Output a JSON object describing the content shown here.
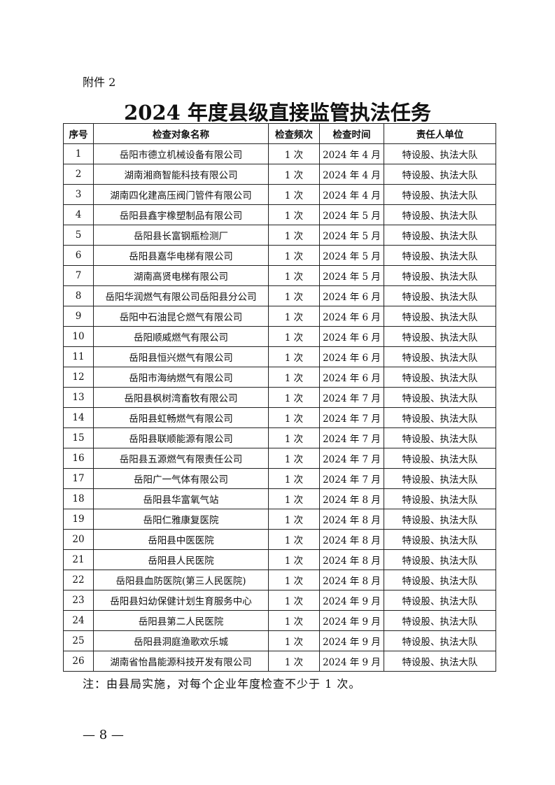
{
  "attachment_label": "附件 2",
  "title": "2024 年度县级直接监管执法任务",
  "table": {
    "headers": [
      "序号",
      "检查对象名称",
      "检查频次",
      "检查时间",
      "责任人单位"
    ],
    "rows": [
      [
        "1",
        "岳阳市德立机械设备有限公司",
        "1 次",
        "2024 年 4 月",
        "特设股、执法大队"
      ],
      [
        "2",
        "湖南湘商智能科技有限公司",
        "1 次",
        "2024 年 4 月",
        "特设股、执法大队"
      ],
      [
        "3",
        "湖南四化建高压阀门管件有限公司",
        "1 次",
        "2024 年 4 月",
        "特设股、执法大队"
      ],
      [
        "4",
        "岳阳县鑫宇橡塑制品有限公司",
        "1 次",
        "2024 年 5 月",
        "特设股、执法大队"
      ],
      [
        "5",
        "岳阳县长富钢瓶检测厂",
        "1 次",
        "2024 年 5 月",
        "特设股、执法大队"
      ],
      [
        "6",
        "岳阳县嘉华电梯有限公司",
        "1 次",
        "2024 年 5 月",
        "特设股、执法大队"
      ],
      [
        "7",
        "湖南高贤电梯有限公司",
        "1 次",
        "2024 年 5 月",
        "特设股、执法大队"
      ],
      [
        "8",
        "岳阳华润燃气有限公司岳阳县分公司",
        "1 次",
        "2024 年 6 月",
        "特设股、执法大队"
      ],
      [
        "9",
        "岳阳中石油昆仑燃气有限公司",
        "1 次",
        "2024 年 6 月",
        "特设股、执法大队"
      ],
      [
        "10",
        "岳阳顺威燃气有限公司",
        "1 次",
        "2024 年 6 月",
        "特设股、执法大队"
      ],
      [
        "11",
        "岳阳县恒兴燃气有限公司",
        "1 次",
        "2024 年 6 月",
        "特设股、执法大队"
      ],
      [
        "12",
        "岳阳市海纳燃气有限公司",
        "1 次",
        "2024 年 6 月",
        "特设股、执法大队"
      ],
      [
        "13",
        "岳阳县枫树湾畜牧有限公司",
        "1 次",
        "2024 年 7 月",
        "特设股、执法大队"
      ],
      [
        "14",
        "岳阳县虹畅燃气有限公司",
        "1 次",
        "2024 年 7 月",
        "特设股、执法大队"
      ],
      [
        "15",
        "岳阳县联顺能源有限公司",
        "1 次",
        "2024 年 7 月",
        "特设股、执法大队"
      ],
      [
        "16",
        "岳阳县五源燃气有限责任公司",
        "1 次",
        "2024 年 7 月",
        "特设股、执法大队"
      ],
      [
        "17",
        "岳阳广一气体有限公司",
        "1 次",
        "2024 年 7 月",
        "特设股、执法大队"
      ],
      [
        "18",
        "岳阳县华富氧气站",
        "1 次",
        "2024 年 8 月",
        "特设股、执法大队"
      ],
      [
        "19",
        "岳阳仁雅康复医院",
        "1 次",
        "2024 年 8 月",
        "特设股、执法大队"
      ],
      [
        "20",
        "岳阳县中医医院",
        "1 次",
        "2024 年 8 月",
        "特设股、执法大队"
      ],
      [
        "21",
        "岳阳县人民医院",
        "1 次",
        "2024 年 8 月",
        "特设股、执法大队"
      ],
      [
        "22",
        "岳阳县血防医院(第三人民医院)",
        "1 次",
        "2024 年 8 月",
        "特设股、执法大队"
      ],
      [
        "23",
        "岳阳县妇幼保健计划生育服务中心",
        "1 次",
        "2024 年 9 月",
        "特设股、执法大队"
      ],
      [
        "24",
        "岳阳县第二人民医院",
        "1 次",
        "2024 年 9 月",
        "特设股、执法大队"
      ],
      [
        "25",
        "岳阳县洞庭渔歌欢乐城",
        "1 次",
        "2024 年 9 月",
        "特设股、执法大队"
      ],
      [
        "26",
        "湖南省怡昌能源科技开发有限公司",
        "1 次",
        "2024 年 9 月",
        "特设股、执法大队"
      ]
    ]
  },
  "note": "注：由县局实施，对每个企业年度检查不少于 1 次。",
  "page_number": "— 8 —"
}
